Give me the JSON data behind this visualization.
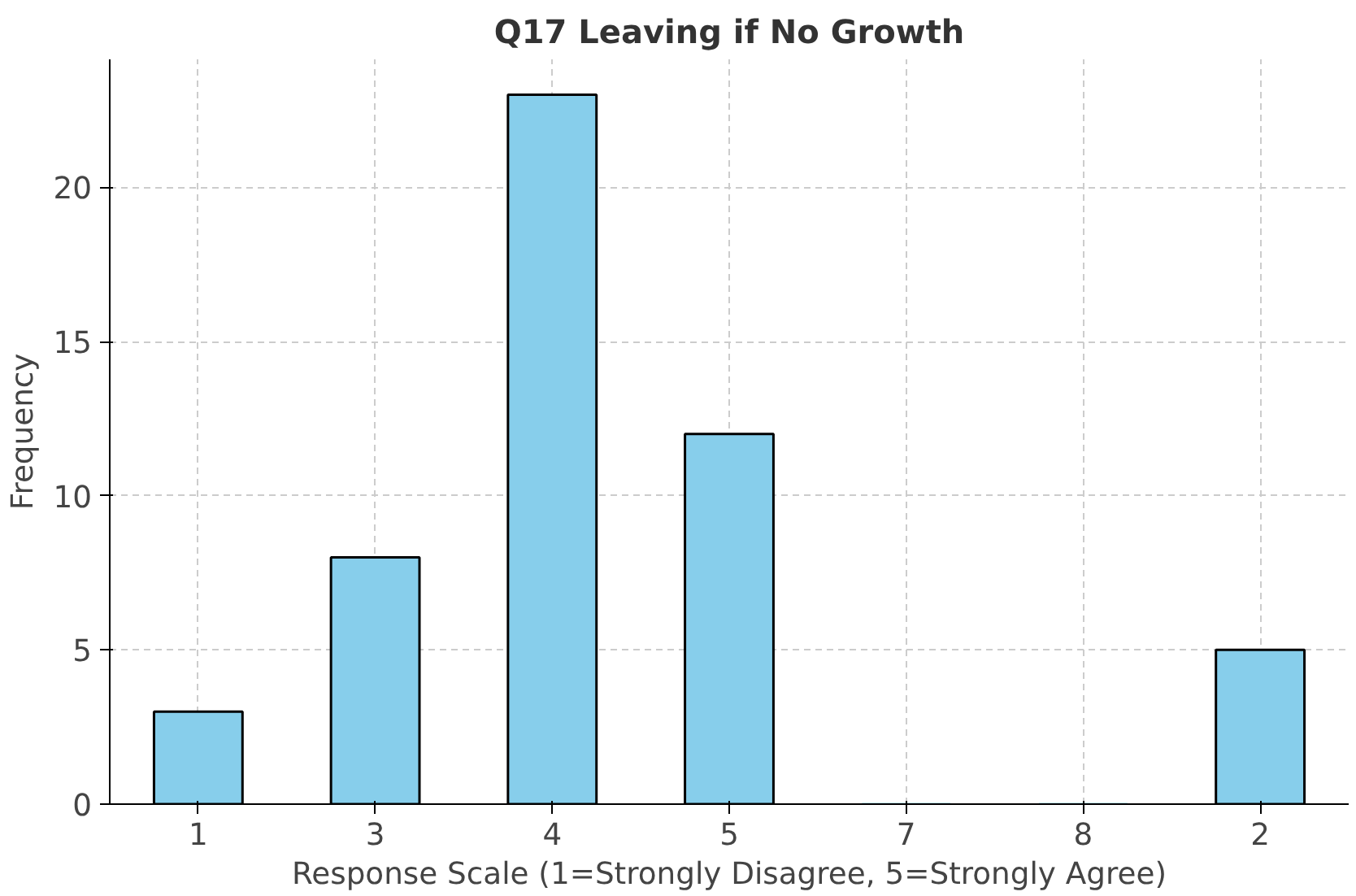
{
  "chart_data": {
    "type": "bar",
    "title": "Q17 Leaving if No Growth",
    "xlabel": "Response Scale (1=Strongly Disagree, 5=Strongly Agree)",
    "ylabel": "Frequency",
    "categories": [
      "1",
      "3",
      "4",
      "5",
      "7",
      "8",
      "2"
    ],
    "values": [
      3,
      8,
      23,
      12,
      0,
      0,
      5
    ],
    "color": "#87ceeb",
    "ylim": [
      0,
      24.15
    ],
    "yticks": [
      0,
      5,
      10,
      15,
      20
    ],
    "grid": true
  }
}
